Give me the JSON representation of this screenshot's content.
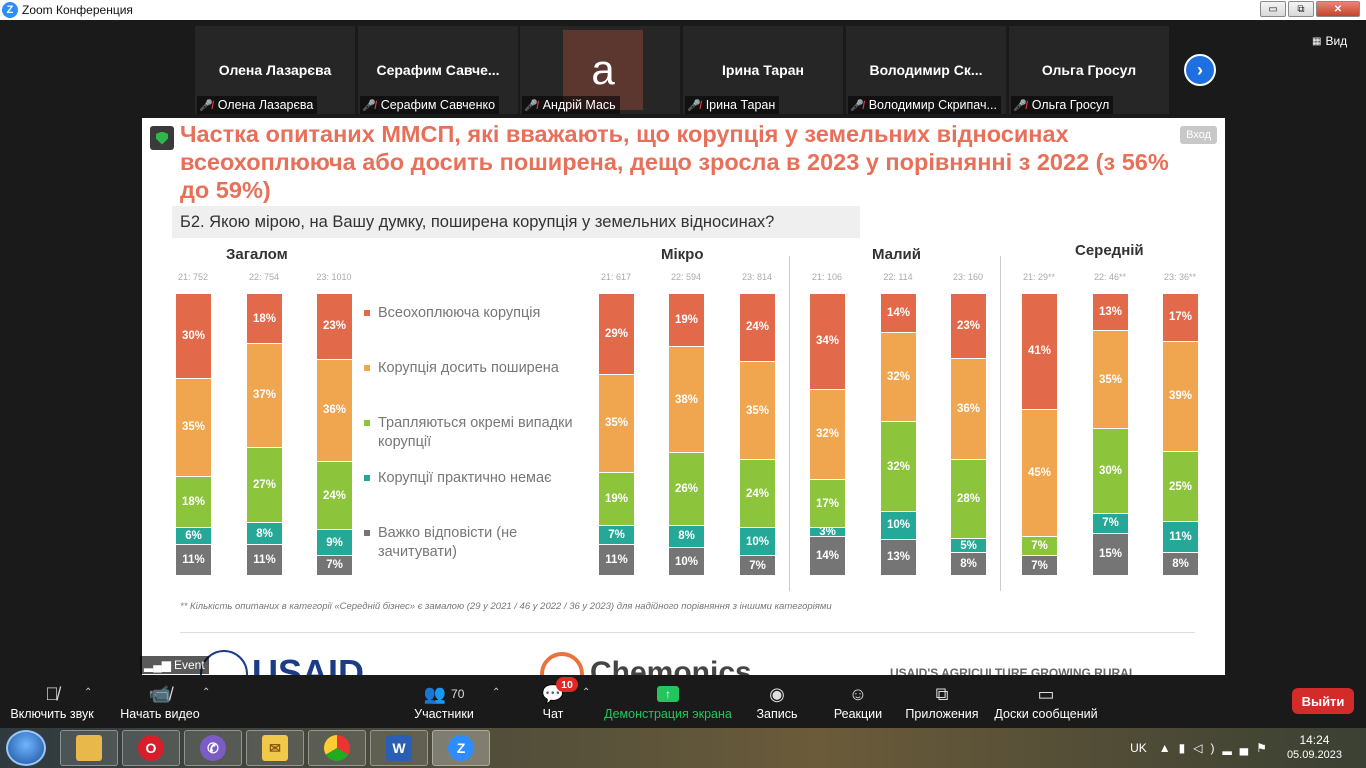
{
  "window": {
    "title": "Zoom Конференция",
    "min": "▭",
    "max": "⧉",
    "close": "✕"
  },
  "gallery": {
    "tiles": [
      {
        "name": "Олена Лазарєва",
        "label": "Олена Лазарєва"
      },
      {
        "name": "Серафим  Савче...",
        "label": "Серафим Савченко"
      },
      {
        "name": "",
        "avatar": "a",
        "label": "Андрій Мась"
      },
      {
        "name": "Ірина Таран",
        "label": "Ірина Таран"
      },
      {
        "name": "Володимир  Ск...",
        "label": "Володимир Скрипач..."
      },
      {
        "name": "Ольга Гросул",
        "label": "Ольга Гросул"
      }
    ],
    "view_label": "Вид"
  },
  "share": {
    "enter_label": "Вход",
    "event_label": "Event",
    "title": "Частка опитаних ММСП, які вважають, що корупція у земельних відносинах всеохоплююча або досить поширена, дещо зросла в 2023 у порівнянні з 2022 (з 56% до 59%)",
    "question": "Б2. Якою мірою, на Вашу думку, поширена корупція у земельних відносинах?",
    "footnote": "** Кількість опитаних в категорії «Середній бізнес» є замалою (29 у 2021 / 46 у 2022 / 36 у 2023) для надійного порівняння з іншими категоріями",
    "logos": {
      "usaid": "USAID",
      "chemonics": "Chemonics",
      "project": "USAID'S AGRICULTURE GROWING RURAL"
    }
  },
  "chart_data": {
    "type": "bar",
    "stacked": true,
    "title": "Частка опитаних ММСП, які вважають, що корупція у земельних відносинах всеохоплююча або досить поширена, дещо зросла в 2023 у порівнянні з 2022 (з 56% до 59%)",
    "groups": [
      {
        "name": "Загалом",
        "bars": [
          {
            "n": "21: 752",
            "values": [
              30,
              35,
              18,
              6,
              11
            ]
          },
          {
            "n": "22: 754",
            "values": [
              18,
              37,
              27,
              8,
              11
            ]
          },
          {
            "n": "23: 1010",
            "values": [
              23,
              36,
              24,
              9,
              7
            ]
          }
        ]
      },
      {
        "name": "Мікро",
        "bars": [
          {
            "n": "21: 617",
            "values": [
              29,
              35,
              19,
              7,
              11
            ]
          },
          {
            "n": "22: 594",
            "values": [
              19,
              38,
              26,
              8,
              10
            ]
          },
          {
            "n": "23: 814",
            "values": [
              24,
              35,
              24,
              10,
              7
            ]
          }
        ]
      },
      {
        "name": "Малий",
        "bars": [
          {
            "n": "21: 106",
            "values": [
              34,
              32,
              17,
              3,
              14
            ]
          },
          {
            "n": "22: 114",
            "values": [
              14,
              32,
              32,
              10,
              13
            ]
          },
          {
            "n": "23: 160",
            "values": [
              23,
              36,
              28,
              5,
              8
            ]
          }
        ]
      },
      {
        "name": "Середній",
        "bars": [
          {
            "n": "21: 29**",
            "values": [
              41,
              45,
              7,
              0,
              7
            ]
          },
          {
            "n": "22: 46**",
            "values": [
              13,
              35,
              30,
              7,
              15
            ]
          },
          {
            "n": "23: 36**",
            "values": [
              17,
              39,
              25,
              11,
              8
            ]
          }
        ]
      }
    ],
    "series": [
      {
        "name": "Всеохоплююча корупція",
        "color": "#e2694a"
      },
      {
        "name": "Корупція досить поширена",
        "color": "#f0a54f"
      },
      {
        "name": "Трапляються окремі випадки корупції",
        "color": "#8cc43c"
      },
      {
        "name": "Корупції практично немає",
        "color": "#25a898"
      },
      {
        "name": "Важко відповісти (не зачитувати)",
        "color": "#757575"
      }
    ]
  },
  "toolbar": {
    "unmute": "Включить звук",
    "start_video": "Начать видео",
    "participants": "Участники",
    "participants_count": "70",
    "chat": "Чат",
    "chat_badge": "10",
    "share_screen": "Демонстрация экрана",
    "record": "Запись",
    "reactions": "Реакции",
    "apps": "Приложения",
    "whiteboards": "Доски сообщений",
    "leave": "Выйти"
  },
  "taskbar": {
    "lang": "UK",
    "time": "14:24",
    "date": "05.09.2023"
  }
}
